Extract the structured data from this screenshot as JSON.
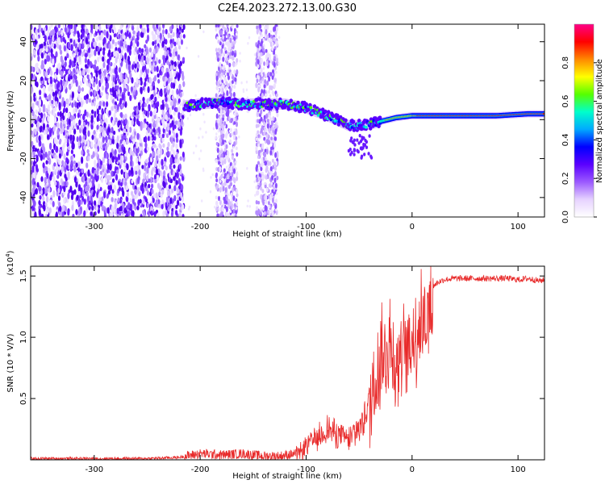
{
  "title": "C2E4.2023.272.13.00.G30",
  "colors": {
    "snr_line": "#e82a2a",
    "colormap": [
      "#ffffff",
      "#e6d2ff",
      "#9b59ff",
      "#5a00ff",
      "#0000ff",
      "#00aaff",
      "#00ffcc",
      "#55ff00",
      "#ffff00",
      "#ff8800",
      "#ff0000",
      "#ff0088"
    ]
  },
  "chart_data": [
    {
      "type": "heatmap",
      "title": "C2E4.2023.272.13.00.G30",
      "xlabel": "Height of straight line (km)",
      "ylabel": "Frequency (Hz)",
      "xlim": [
        -360,
        125
      ],
      "ylim": [
        -50,
        49
      ],
      "x_ticks": [
        -300,
        -200,
        -100,
        0,
        100
      ],
      "x_tick_labels": [
        "-300",
        "-200",
        "-100",
        "0",
        "100"
      ],
      "y_ticks": [
        -40,
        -20,
        0,
        20,
        40
      ],
      "y_tick_labels": [
        "-40",
        "-20",
        "0",
        "20",
        "40"
      ],
      "colorbar": {
        "label": "Normalized spectral amplitude",
        "range": [
          0,
          1
        ],
        "ticks": [
          0.0,
          0.2,
          0.4,
          0.6,
          0.8
        ],
        "tick_labels": [
          "0.0",
          "0.2",
          "0.4",
          "0.6",
          "0.8"
        ]
      },
      "grid": false,
      "features": {
        "noise_band_x": [
          -360,
          -215
        ],
        "noise_stripes_x": [
          [
            -185,
            -165
          ],
          [
            -147,
            -127
          ]
        ],
        "ridge": [
          [
            -215,
            7
          ],
          [
            -200,
            8
          ],
          [
            -180,
            9
          ],
          [
            -160,
            8
          ],
          [
            -140,
            8
          ],
          [
            -120,
            8
          ],
          [
            -100,
            6
          ],
          [
            -80,
            2
          ],
          [
            -60,
            -3
          ],
          [
            -45,
            -3
          ],
          [
            -30,
            -1
          ],
          [
            -15,
            1
          ],
          [
            0,
            2
          ],
          [
            40,
            2
          ],
          [
            80,
            2
          ],
          [
            110,
            3
          ],
          [
            125,
            3
          ]
        ]
      }
    },
    {
      "type": "line",
      "series": [
        {
          "x": [
            -360,
            -250,
            -220,
            -200,
            -180,
            -160,
            -140,
            -125,
            -110,
            -100,
            -90,
            -80,
            -70,
            -60,
            -50,
            -45,
            -40,
            -35,
            -30,
            -25,
            -20,
            -15,
            -10,
            -5,
            0,
            5,
            10,
            15,
            20,
            25,
            30,
            40,
            50,
            60,
            70,
            80,
            90,
            100,
            110,
            120,
            125
          ],
          "y": [
            0.01,
            0.01,
            0.02,
            0.05,
            0.04,
            0.05,
            0.03,
            0.03,
            0.05,
            0.15,
            0.2,
            0.3,
            0.25,
            0.2,
            0.3,
            0.4,
            0.55,
            0.75,
            0.95,
            1.0,
            1.1,
            0.9,
            1.05,
            1.0,
            1.1,
            1.2,
            1.25,
            1.35,
            1.42,
            1.45,
            1.47,
            1.48,
            1.48,
            1.48,
            1.48,
            1.48,
            1.48,
            1.47,
            1.48,
            1.46,
            1.47
          ]
        }
      ],
      "xlabel": "Height of straight line (km)",
      "ylabel": "SNR (10 * V/V)",
      "y_multiplier": "(x10",
      "y_multiplier_exp": "4",
      "y_multiplier_close": ")",
      "xlim": [
        -360,
        125
      ],
      "ylim": [
        0,
        1.58
      ],
      "x_ticks": [
        -300,
        -200,
        -100,
        0,
        100
      ],
      "x_tick_labels": [
        "-300",
        "-200",
        "-100",
        "0",
        "100"
      ],
      "y_ticks": [
        0.5,
        1.0,
        1.5
      ],
      "y_tick_labels": [
        "0.5",
        "1.0",
        "1.5"
      ],
      "grid": false
    }
  ]
}
